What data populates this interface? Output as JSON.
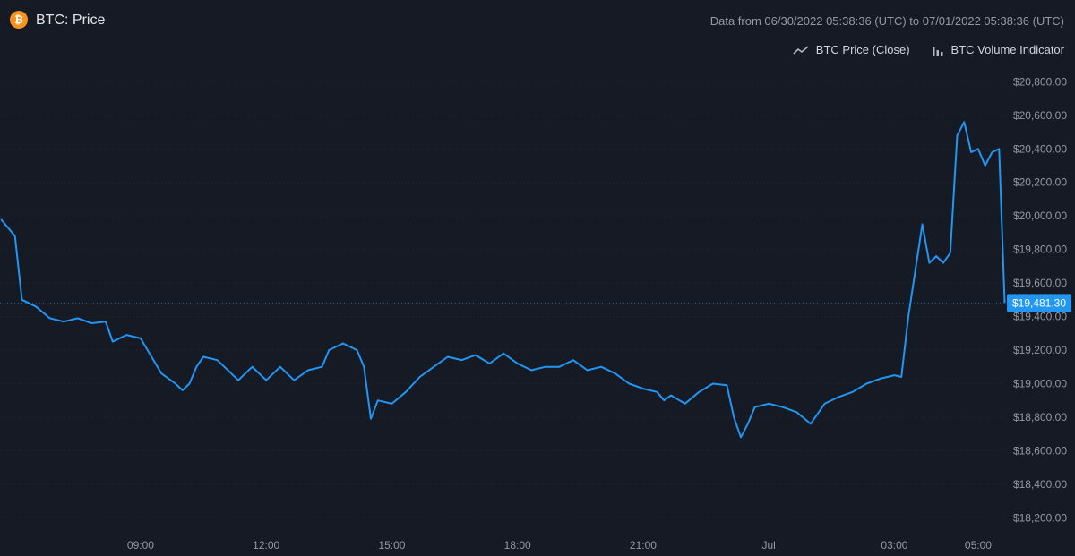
{
  "header": {
    "title": "BTC: Price",
    "icon": "bitcoin-icon",
    "icon_glyph": "₿",
    "range_text": "Data from 06/30/2022 05:38:36 (UTC) to 07/01/2022 05:38:36 (UTC)"
  },
  "legend": {
    "price_label": "BTC Price (Close)",
    "volume_label": "BTC Volume Indicator"
  },
  "colors": {
    "background": "#161a25",
    "price_line": "#2196f3",
    "volume_up": "#26a69a",
    "volume_down": "#ef5350",
    "grid": "#232733",
    "last_price_badge": "#2196f3"
  },
  "chart_data": {
    "type": "line",
    "title": "BTC: Price",
    "ylim": [
      18100,
      20850
    ],
    "y_ticks": [
      18200,
      18400,
      18600,
      18800,
      19000,
      19200,
      19400,
      19600,
      19800,
      20000,
      20200,
      20400,
      20600,
      20800
    ],
    "y_tick_labels": [
      "$18,200.00",
      "$18,400.00",
      "$18,600.00",
      "$18,800.00",
      "$19,000.00",
      "$19,200.00",
      "$19,400.00",
      "$19,600.00",
      "$19,800.00",
      "$20,000.00",
      "$20,200.00",
      "$20,400.00",
      "$20,600.00",
      "$20,800.00"
    ],
    "x_range": [
      "06/30/2022 05:38:36",
      "07/01/2022 05:38:36"
    ],
    "x_ticks": [
      "06/30/2022 09:00",
      "06/30/2022 12:00",
      "06/30/2022 15:00",
      "06/30/2022 18:00",
      "06/30/2022 21:00",
      "07/01/2022 00:00",
      "07/01/2022 03:00",
      "07/01/2022 05:00"
    ],
    "x_tick_labels": [
      "09:00",
      "12:00",
      "15:00",
      "18:00",
      "21:00",
      "Jul",
      "03:00",
      "05:00"
    ],
    "last_price": 19481.3,
    "last_price_label": "$19,481.30",
    "grid": true,
    "legend_position": "top-right",
    "series": [
      {
        "name": "BTC Price (Close)",
        "type": "line",
        "points": [
          [
            "06/30/2022 05:40",
            19980
          ],
          [
            "06/30/2022 06:00",
            19880
          ],
          [
            "06/30/2022 06:10",
            19500
          ],
          [
            "06/30/2022 06:30",
            19460
          ],
          [
            "06/30/2022 06:50",
            19390
          ],
          [
            "06/30/2022 07:10",
            19370
          ],
          [
            "06/30/2022 07:30",
            19390
          ],
          [
            "06/30/2022 07:50",
            19360
          ],
          [
            "06/30/2022 08:10",
            19370
          ],
          [
            "06/30/2022 08:20",
            19250
          ],
          [
            "06/30/2022 08:40",
            19290
          ],
          [
            "06/30/2022 09:00",
            19270
          ],
          [
            "06/30/2022 09:10",
            19200
          ],
          [
            "06/30/2022 09:30",
            19060
          ],
          [
            "06/30/2022 09:50",
            19000
          ],
          [
            "06/30/2022 10:00",
            18960
          ],
          [
            "06/30/2022 10:10",
            19000
          ],
          [
            "06/30/2022 10:20",
            19100
          ],
          [
            "06/30/2022 10:30",
            19160
          ],
          [
            "06/30/2022 10:50",
            19140
          ],
          [
            "06/30/2022 11:10",
            19060
          ],
          [
            "06/30/2022 11:20",
            19020
          ],
          [
            "06/30/2022 11:40",
            19100
          ],
          [
            "06/30/2022 12:00",
            19020
          ],
          [
            "06/30/2022 12:20",
            19100
          ],
          [
            "06/30/2022 12:40",
            19020
          ],
          [
            "06/30/2022 13:00",
            19080
          ],
          [
            "06/30/2022 13:20",
            19100
          ],
          [
            "06/30/2022 13:30",
            19200
          ],
          [
            "06/30/2022 13:50",
            19240
          ],
          [
            "06/30/2022 14:10",
            19200
          ],
          [
            "06/30/2022 14:20",
            19100
          ],
          [
            "06/30/2022 14:30",
            18790
          ],
          [
            "06/30/2022 14:40",
            18900
          ],
          [
            "06/30/2022 15:00",
            18880
          ],
          [
            "06/30/2022 15:20",
            18950
          ],
          [
            "06/30/2022 15:40",
            19040
          ],
          [
            "06/30/2022 16:00",
            19100
          ],
          [
            "06/30/2022 16:20",
            19160
          ],
          [
            "06/30/2022 16:40",
            19140
          ],
          [
            "06/30/2022 17:00",
            19170
          ],
          [
            "06/30/2022 17:20",
            19120
          ],
          [
            "06/30/2022 17:40",
            19180
          ],
          [
            "06/30/2022 18:00",
            19120
          ],
          [
            "06/30/2022 18:20",
            19080
          ],
          [
            "06/30/2022 18:40",
            19100
          ],
          [
            "06/30/2022 19:00",
            19100
          ],
          [
            "06/30/2022 19:20",
            19140
          ],
          [
            "06/30/2022 19:40",
            19080
          ],
          [
            "06/30/2022 20:00",
            19100
          ],
          [
            "06/30/2022 20:20",
            19060
          ],
          [
            "06/30/2022 20:40",
            19000
          ],
          [
            "06/30/2022 21:00",
            18970
          ],
          [
            "06/30/2022 21:20",
            18950
          ],
          [
            "06/30/2022 21:30",
            18900
          ],
          [
            "06/30/2022 21:40",
            18930
          ],
          [
            "06/30/2022 22:00",
            18880
          ],
          [
            "06/30/2022 22:20",
            18950
          ],
          [
            "06/30/2022 22:40",
            19000
          ],
          [
            "06/30/2022 23:00",
            18990
          ],
          [
            "06/30/2022 23:10",
            18800
          ],
          [
            "06/30/2022 23:20",
            18680
          ],
          [
            "06/30/2022 23:30",
            18760
          ],
          [
            "06/30/2022 23:40",
            18860
          ],
          [
            "07/01/2022 00:00",
            18880
          ],
          [
            "07/01/2022 00:20",
            18860
          ],
          [
            "07/01/2022 00:40",
            18830
          ],
          [
            "07/01/2022 01:00",
            18760
          ],
          [
            "07/01/2022 01:20",
            18880
          ],
          [
            "07/01/2022 01:40",
            18920
          ],
          [
            "07/01/2022 02:00",
            18950
          ],
          [
            "07/01/2022 02:20",
            19000
          ],
          [
            "07/01/2022 02:40",
            19030
          ],
          [
            "07/01/2022 03:00",
            19050
          ],
          [
            "07/01/2022 03:10",
            19040
          ],
          [
            "07/01/2022 03:20",
            19400
          ],
          [
            "07/01/2022 03:40",
            19950
          ],
          [
            "07/01/2022 03:50",
            19720
          ],
          [
            "07/01/2022 04:00",
            19760
          ],
          [
            "07/01/2022 04:10",
            19720
          ],
          [
            "07/01/2022 04:20",
            19780
          ],
          [
            "07/01/2022 04:30",
            20480
          ],
          [
            "07/01/2022 04:40",
            20560
          ],
          [
            "07/01/2022 04:50",
            20380
          ],
          [
            "07/01/2022 05:00",
            20400
          ],
          [
            "07/01/2022 05:10",
            20300
          ],
          [
            "07/01/2022 05:20",
            20380
          ],
          [
            "07/01/2022 05:30",
            20400
          ],
          [
            "07/01/2022 05:38",
            19481.3
          ]
        ]
      },
      {
        "name": "BTC Volume Indicator",
        "type": "bar",
        "values": []
      }
    ]
  }
}
